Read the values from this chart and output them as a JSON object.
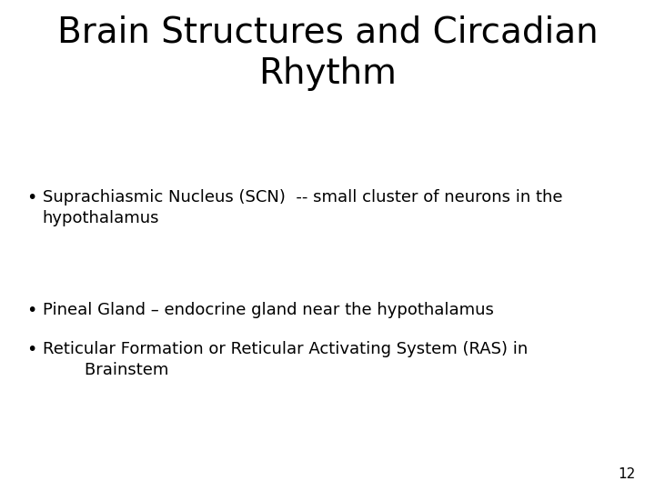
{
  "title_line1": "Brain Structures and Circadian",
  "title_line2": "Rhythm",
  "bullet1_line1": "Suprachiasmic Nucleus (SCN)  -- small cluster of neurons in the",
  "bullet1_line2": "hypothalamus",
  "bullet2": "Pineal Gland – endocrine gland near the hypothalamus",
  "bullet3_line1": "Reticular Formation or Reticular Activating System (RAS) in",
  "bullet3_line2": "        Brainstem",
  "page_number": "12",
  "background_color": "#ffffff",
  "text_color": "#000000",
  "title_fontsize": 28,
  "body_fontsize": 13,
  "page_fontsize": 11
}
